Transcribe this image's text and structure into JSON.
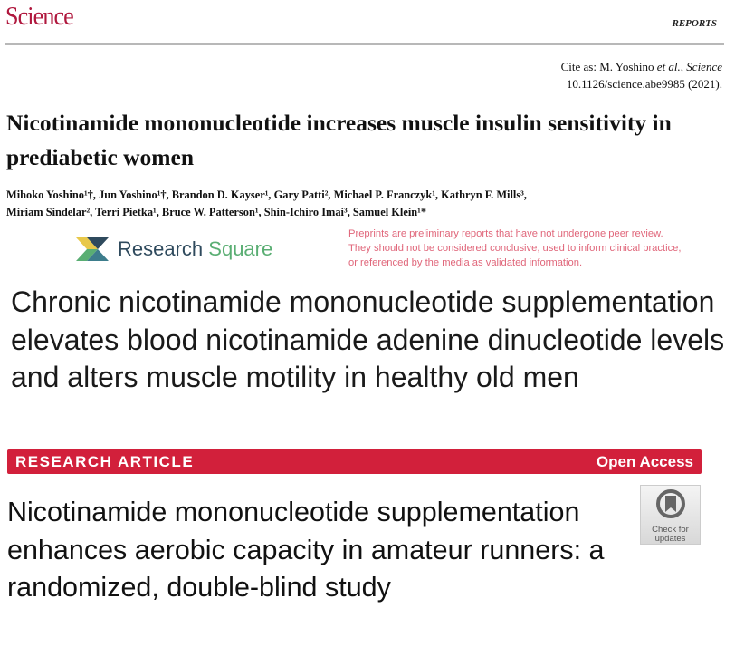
{
  "science_header": {
    "logo": "Science",
    "section": "REPORTS",
    "cite_prefix": "Cite as: M. Yoshino ",
    "cite_etal": "et al.",
    "cite_journal": ", Science",
    "cite_line2": "10.1126/science.abe9985 (2021).",
    "title": "Nicotinamide mononucleotide increases muscle insulin sensitivity in prediabetic women",
    "authors_line1": "Mihoko Yoshino¹†, Jun Yoshino¹†, Brandon D. Kayser¹, Gary Patti², Michael P. Franczyk¹, Kathryn F. Mills³,",
    "authors_line2": "Miriam Sindelar², Terri Pietka¹, Bruce W. Patterson¹, Shin-Ichiro Imai³, Samuel Klein¹*"
  },
  "research_square": {
    "logo_word1": "Research",
    "logo_word2": "Square",
    "disclaimer_line1": "Preprints are preliminary reports that have not undergone peer review.",
    "disclaimer_line2": "They should not be considered conclusive, used to inform clinical practice,",
    "disclaimer_line3": "or referenced by the media as validated information.",
    "title": "Chronic nicotinamide mononucleotide supplementation elevates blood nicotinamide adenine dinucleotide levels and alters muscle motility in healthy old men",
    "disclaimer_color": "#e0667a"
  },
  "article": {
    "type_label": "RESEARCH ARTICLE",
    "access_label": "Open Access",
    "bar_color": "#d2203b",
    "badge_line1": "Check for",
    "badge_line2": "updates",
    "title": "Nicotinamide mononucleotide supplementation enhances aerobic capacity in amateur runners: a randomized, double-blind study"
  }
}
